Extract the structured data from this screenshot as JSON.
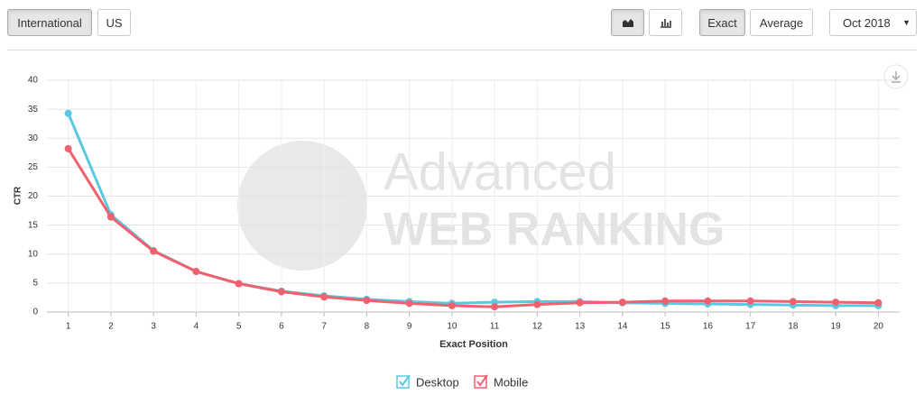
{
  "toolbar": {
    "region_buttons": [
      "International",
      "US"
    ],
    "mode_buttons": [
      "Exact",
      "Average"
    ],
    "date_select": "Oct 2018"
  },
  "watermark": {
    "line1": "Advanced",
    "line2": "WEB RANKING"
  },
  "chart_data": {
    "type": "line",
    "ylabel": "CTR",
    "xlabel": "Exact Position",
    "x": [
      1,
      2,
      3,
      4,
      5,
      6,
      7,
      8,
      9,
      10,
      11,
      12,
      13,
      14,
      15,
      16,
      17,
      18,
      19,
      20
    ],
    "xlim": [
      0.5,
      20.5
    ],
    "xticks": [
      1,
      2,
      3,
      4,
      5,
      6,
      7,
      8,
      9,
      10,
      11,
      12,
      13,
      14,
      15,
      16,
      17,
      18,
      19,
      20
    ],
    "ylim": [
      0,
      40
    ],
    "yticks": [
      0,
      5,
      10,
      15,
      20,
      25,
      30,
      35,
      40
    ],
    "grid": true,
    "series": [
      {
        "name": "Desktop",
        "color": "#5bc8e2",
        "values": [
          34.3,
          16.8,
          10.6,
          7.0,
          4.9,
          3.6,
          2.8,
          2.2,
          1.8,
          1.5,
          1.7,
          1.8,
          1.8,
          1.6,
          1.5,
          1.4,
          1.3,
          1.2,
          1.1,
          1.1
        ]
      },
      {
        "name": "Mobile",
        "color": "#f0606e",
        "values": [
          28.2,
          16.4,
          10.5,
          7.0,
          4.9,
          3.5,
          2.6,
          2.0,
          1.5,
          1.1,
          0.9,
          1.3,
          1.6,
          1.7,
          1.9,
          1.9,
          1.9,
          1.8,
          1.7,
          1.6
        ]
      }
    ]
  }
}
